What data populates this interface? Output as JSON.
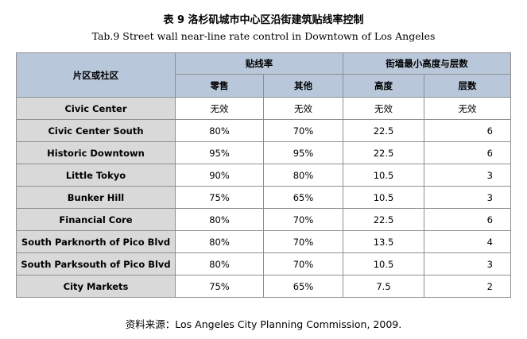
{
  "title_cn": "表 9  洛杉矶城市中心区沿街建筑贴线率控制",
  "title_en": "Tab.9 Street wall near-line rate control in Downtown of Los Angeles",
  "headers": {
    "area": "片区或社区",
    "near_line_rate": "贴线率",
    "min_height_floors": "街墙最小高度与层数",
    "retail": "零售",
    "other": "其他",
    "height": "高度",
    "floors": "层数"
  },
  "rows": [
    {
      "name": "Civic Center",
      "retail": "无效",
      "other": "无效",
      "height": "无效",
      "floors": "无效"
    },
    {
      "name": "Civic Center South",
      "retail": "80%",
      "other": "70%",
      "height": "22.5",
      "floors": "6"
    },
    {
      "name": "Historic Downtown",
      "retail": "95%",
      "other": "95%",
      "height": "22.5",
      "floors": "6"
    },
    {
      "name": "Little Tokyo",
      "retail": "90%",
      "other": "80%",
      "height": "10.5",
      "floors": "3"
    },
    {
      "name": "Bunker Hill",
      "retail": "75%",
      "other": "65%",
      "height": "10.5",
      "floors": "3"
    },
    {
      "name": "Financial Core",
      "retail": "80%",
      "other": "70%",
      "height": "22.5",
      "floors": "6"
    },
    {
      "name": "South Parknorth of Pico Blvd",
      "retail": "80%",
      "other": "70%",
      "height": "13.5",
      "floors": "4"
    },
    {
      "name": "South Parksouth of Pico Blvd",
      "retail": "80%",
      "other": "70%",
      "height": "10.5",
      "floors": "3"
    },
    {
      "name": "City Markets",
      "retail": "75%",
      "other": "65%",
      "height": "7.5",
      "floors": "2"
    }
  ],
  "source_note": "资料来源：Los Angeles City Planning Commission, 2009."
}
